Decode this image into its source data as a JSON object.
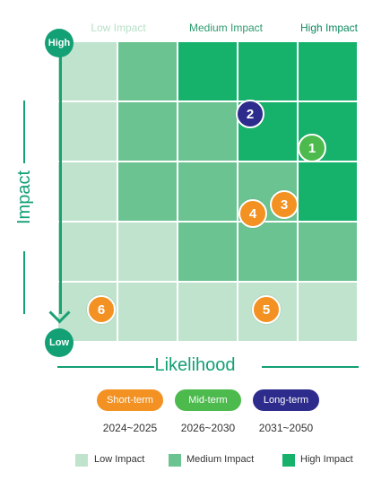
{
  "column_labels": [
    {
      "text": "Low Impact",
      "color": "#b8e0c8"
    },
    {
      "text": "Medium Impact",
      "color": "#2e9b6f"
    },
    {
      "text": "High Impact",
      "color": "#0f8a5f"
    }
  ],
  "axis": {
    "y_title": "Impact",
    "y_top": "High",
    "y_bottom": "Low",
    "x_title": "Likelihood"
  },
  "grid_colors": {
    "low": "#bfe3cd",
    "medium": "#6cc392",
    "high": "#16b26c"
  },
  "grid_levels": [
    [
      "low",
      "medium",
      "high",
      "high",
      "high"
    ],
    [
      "low",
      "medium",
      "medium",
      "high",
      "high"
    ],
    [
      "low",
      "medium",
      "medium",
      "medium",
      "high"
    ],
    [
      "low",
      "low",
      "medium",
      "medium",
      "medium"
    ],
    [
      "low",
      "low",
      "low",
      "low",
      "low"
    ]
  ],
  "risks": [
    {
      "id": "1",
      "term": "mid"
    },
    {
      "id": "2",
      "term": "long"
    },
    {
      "id": "3",
      "term": "short"
    },
    {
      "id": "4",
      "term": "short"
    },
    {
      "id": "5",
      "term": "short"
    },
    {
      "id": "6",
      "term": "short"
    }
  ],
  "terms": {
    "short": {
      "label": "Short-term",
      "years": "2024~2025",
      "color": "#f39223"
    },
    "mid": {
      "label": "Mid-term",
      "years": "2026~2030",
      "color": "#4dba4d"
    },
    "long": {
      "label": "Long-term",
      "years": "2031~2050",
      "color": "#2d2c8c"
    }
  },
  "legend": [
    {
      "label": "Low Impact",
      "level": "low"
    },
    {
      "label": "Medium Impact",
      "level": "medium"
    },
    {
      "label": "High Impact",
      "level": "high"
    }
  ]
}
